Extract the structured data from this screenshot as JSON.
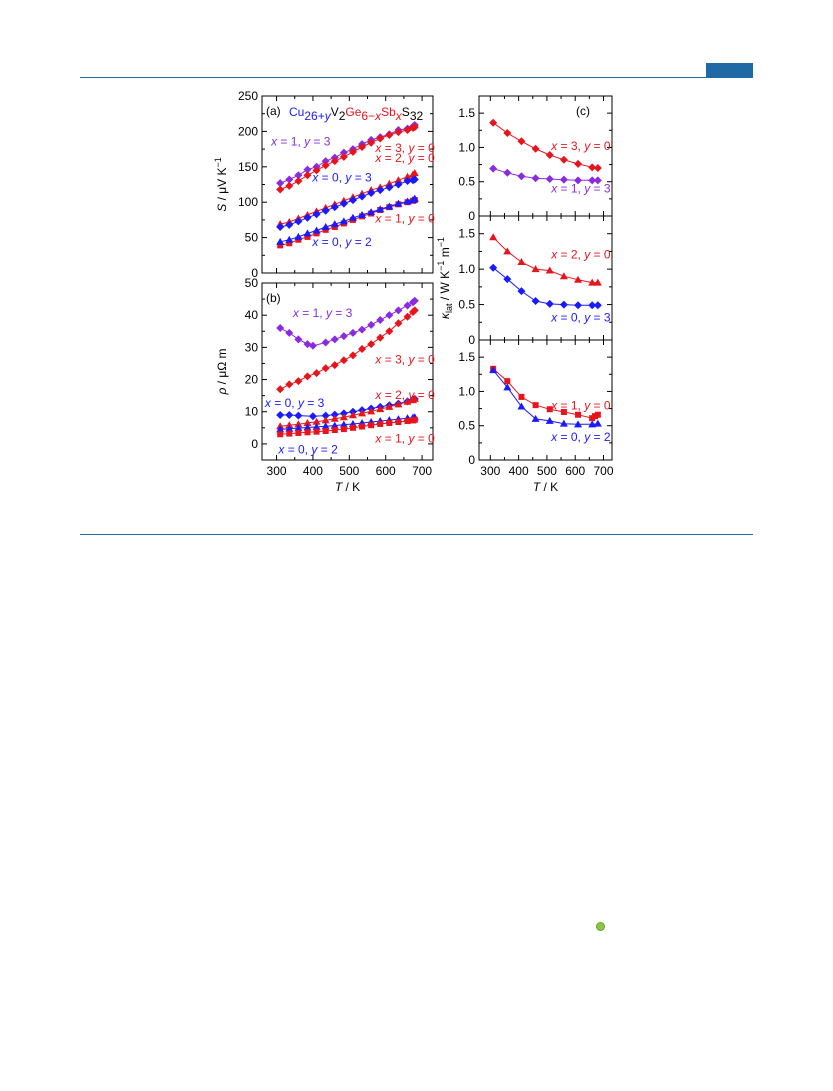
{
  "figure": {
    "panel_a_label": "(a)",
    "panel_b_label": "(b)",
    "panel_c_label": "(c)",
    "formula": [
      {
        "text": "Cu",
        "color": "#1a1aff",
        "sub": false
      },
      {
        "text": "26+",
        "color": "#1a1aff",
        "sub": true
      },
      {
        "text": "y",
        "color": "#1a1aff",
        "sub": true,
        "italic": true
      },
      {
        "text": "V",
        "color": "#000000",
        "sub": false
      },
      {
        "text": "2",
        "color": "#000000",
        "sub": true
      },
      {
        "text": "Ge",
        "color": "#e8141c",
        "sub": false
      },
      {
        "text": "6−",
        "color": "#e8141c",
        "sub": true
      },
      {
        "text": "x",
        "color": "#e8141c",
        "sub": true,
        "italic": true
      },
      {
        "text": "Sb",
        "color": "#e8141c",
        "sub": false
      },
      {
        "text": "x",
        "color": "#e8141c",
        "sub": true,
        "italic": true
      },
      {
        "text": "S",
        "color": "#000000",
        "sub": false
      },
      {
        "text": "32",
        "color": "#000000",
        "sub": true
      }
    ]
  },
  "chart_data": [
    {
      "id": "a",
      "type": "line",
      "ylabel": "S / μV K⁻¹",
      "xlabel": "",
      "xlim": [
        260,
        730
      ],
      "ylim": [
        0,
        250
      ],
      "xticks": [
        300,
        400,
        500,
        600,
        700
      ],
      "yticks": [
        0,
        50,
        100,
        150,
        200,
        250
      ],
      "show_x_ticklabels": false,
      "series": [
        {
          "name": "x = 1, y = 3",
          "color": "#8a2be2",
          "marker": "diamond",
          "x": [
            310,
            335,
            360,
            385,
            410,
            435,
            460,
            485,
            510,
            535,
            560,
            585,
            610,
            635,
            660,
            675,
            680
          ],
          "y": [
            127,
            132,
            138,
            146,
            150,
            158,
            163,
            170,
            175,
            182,
            188,
            192,
            196,
            202,
            204,
            207,
            209
          ]
        },
        {
          "name": "x = 3, y = 0",
          "color": "#e8141c",
          "marker": "diamond",
          "x": [
            310,
            335,
            360,
            385,
            410,
            435,
            460,
            485,
            510,
            535,
            560,
            585,
            610,
            635,
            660,
            675,
            680
          ],
          "y": [
            118,
            123,
            130,
            138,
            145,
            152,
            158,
            164,
            171,
            178,
            184,
            190,
            195,
            199,
            202,
            205,
            206
          ]
        },
        {
          "name": "x = 2, y = 0",
          "color": "#e8141c",
          "marker": "triangle",
          "x": [
            310,
            335,
            360,
            385,
            410,
            435,
            460,
            485,
            510,
            535,
            560,
            585,
            610,
            635,
            660,
            675,
            680
          ],
          "y": [
            69,
            72,
            77,
            82,
            87,
            92,
            97,
            102,
            107,
            112,
            117,
            121,
            126,
            131,
            136,
            139,
            141
          ]
        },
        {
          "name": "x = 0, y = 3",
          "color": "#1a1aff",
          "marker": "diamond",
          "x": [
            310,
            335,
            360,
            385,
            410,
            435,
            460,
            485,
            510,
            535,
            560,
            585,
            610,
            635,
            660,
            675,
            680
          ],
          "y": [
            65,
            68,
            73,
            78,
            83,
            88,
            93,
            98,
            103,
            108,
            113,
            117,
            121,
            125,
            130,
            131,
            132
          ]
        },
        {
          "name": "x = 1, y = 0",
          "color": "#e8141c",
          "marker": "square",
          "x": [
            310,
            335,
            360,
            385,
            410,
            435,
            460,
            485,
            510,
            535,
            560,
            585,
            610,
            635,
            660,
            675,
            680
          ],
          "y": [
            39,
            42,
            47,
            51,
            56,
            61,
            65,
            70,
            75,
            80,
            84,
            89,
            93,
            97,
            100,
            102,
            103
          ]
        },
        {
          "name": "x = 0, y = 2",
          "color": "#1a1aff",
          "marker": "triangle",
          "x": [
            310,
            335,
            360,
            385,
            410,
            435,
            460,
            485,
            510,
            535,
            560,
            585,
            610,
            635,
            660,
            675,
            680
          ],
          "y": [
            44,
            47,
            51,
            56,
            60,
            65,
            69,
            73,
            78,
            82,
            86,
            90,
            94,
            98,
            101,
            103,
            105
          ]
        }
      ],
      "annotations": [
        {
          "text": "x = 1, y = 3",
          "color": "#8a2be2",
          "x": 285,
          "y": 180,
          "anchor": "start"
        },
        {
          "text": "x = 3, y = 0",
          "color": "#e8141c",
          "x": 735,
          "y": 171,
          "anchor": "end"
        },
        {
          "text": "x = 2, y = 0",
          "color": "#e8141c",
          "x": 735,
          "y": 157,
          "anchor": "end"
        },
        {
          "text": "x = 0, y = 3",
          "color": "#1a1aff",
          "x": 480,
          "y": 129,
          "anchor": "middle"
        },
        {
          "text": "x = 1, y = 0",
          "color": "#e8141c",
          "x": 735,
          "y": 71,
          "anchor": "end"
        },
        {
          "text": "x = 0, y = 2",
          "color": "#1a1aff",
          "x": 480,
          "y": 38,
          "anchor": "middle"
        }
      ]
    },
    {
      "id": "b",
      "type": "line",
      "ylabel": "ρ / μΩ m",
      "xlabel": "T / K",
      "xlim": [
        260,
        730
      ],
      "ylim": [
        -5,
        50
      ],
      "xticks": [
        300,
        400,
        500,
        600,
        700
      ],
      "yticks": [
        0,
        10,
        20,
        30,
        40,
        50
      ],
      "show_x_ticklabels": true,
      "series": [
        {
          "name": "x = 1, y = 3",
          "color": "#8a2be2",
          "marker": "diamond",
          "x": [
            310,
            335,
            360,
            385,
            400,
            435,
            460,
            485,
            510,
            535,
            560,
            585,
            610,
            635,
            660,
            675,
            680
          ],
          "y": [
            36,
            34.5,
            32.5,
            31,
            30.5,
            31.5,
            32.5,
            33.5,
            34.5,
            35.5,
            37,
            38.5,
            40,
            41.5,
            43,
            44,
            44.5
          ]
        },
        {
          "name": "x = 3, y = 0",
          "color": "#e8141c",
          "marker": "diamond",
          "x": [
            310,
            335,
            360,
            385,
            410,
            435,
            460,
            485,
            510,
            535,
            560,
            585,
            610,
            635,
            660,
            675,
            680
          ],
          "y": [
            17,
            18.5,
            19.5,
            21,
            22,
            23.5,
            24.5,
            26,
            27.5,
            29.5,
            31,
            33,
            35,
            37.5,
            39.5,
            41,
            41.5
          ]
        },
        {
          "name": "x = 0, y = 3",
          "color": "#1a1aff",
          "marker": "diamond",
          "x": [
            310,
            335,
            360,
            400,
            435,
            460,
            485,
            510,
            535,
            560,
            585,
            610,
            635,
            660,
            675,
            680
          ],
          "y": [
            9,
            9,
            8.8,
            8.6,
            8.8,
            9.1,
            9.5,
            10,
            10.5,
            11,
            11.5,
            12,
            12.5,
            13.2,
            13.8,
            14
          ]
        },
        {
          "name": "x = 2, y = 0",
          "color": "#e8141c",
          "marker": "triangle",
          "x": [
            310,
            335,
            360,
            385,
            410,
            435,
            460,
            485,
            510,
            535,
            560,
            585,
            610,
            635,
            660,
            675,
            680
          ],
          "y": [
            5.5,
            5.8,
            6.1,
            6.5,
            6.9,
            7.3,
            7.8,
            8.3,
            8.9,
            9.5,
            10.1,
            10.8,
            11.5,
            12.3,
            13.1,
            13.6,
            14
          ]
        },
        {
          "name": "x = 0, y = 2",
          "color": "#1a1aff",
          "marker": "triangle",
          "x": [
            310,
            335,
            360,
            385,
            410,
            435,
            460,
            485,
            510,
            535,
            560,
            585,
            610,
            635,
            660,
            675,
            680
          ],
          "y": [
            4.5,
            4.7,
            4.9,
            5.1,
            5.3,
            5.5,
            5.7,
            6,
            6.2,
            6.5,
            6.8,
            7.1,
            7.4,
            7.7,
            8,
            8.2,
            8.3
          ]
        },
        {
          "name": "x = 1, y = 0",
          "color": "#e8141c",
          "marker": "square",
          "x": [
            310,
            335,
            360,
            385,
            410,
            435,
            460,
            485,
            510,
            535,
            560,
            585,
            610,
            635,
            660,
            675,
            680
          ],
          "y": [
            3,
            3.2,
            3.4,
            3.6,
            3.8,
            4,
            4.3,
            4.6,
            5,
            5.4,
            5.8,
            6.2,
            6.5,
            6.8,
            7.1,
            7.3,
            7.5
          ]
        }
      ],
      "annotations": [
        {
          "text": "x = 1, y = 3",
          "color": "#8a2be2",
          "x": 345,
          "y": 39.5,
          "anchor": "start"
        },
        {
          "text": "x = 3, y = 0",
          "color": "#e8141c",
          "x": 735,
          "y": 25,
          "anchor": "end"
        },
        {
          "text": "x = 2, y = 0",
          "color": "#e8141c",
          "x": 735,
          "y": 14,
          "anchor": "end"
        },
        {
          "text": "x = 0, y = 3",
          "color": "#1a1aff",
          "x": 268,
          "y": 11.5,
          "anchor": "start"
        },
        {
          "text": "x = 0, y = 2",
          "color": "#1a1aff",
          "x": 305,
          "y": -3,
          "anchor": "start"
        },
        {
          "text": "x = 1, y = 0",
          "color": "#e8141c",
          "x": 735,
          "y": 0.5,
          "anchor": "end"
        }
      ]
    },
    {
      "id": "c1",
      "type": "line",
      "ylabel": "",
      "xlabel": "",
      "xlim": [
        260,
        730
      ],
      "ylim": [
        0,
        1.75
      ],
      "xticks": [
        300,
        400,
        500,
        600,
        700
      ],
      "yticks": [
        0,
        0.5,
        1.0,
        1.5
      ],
      "show_x_ticklabels": false,
      "series": [
        {
          "name": "x = 3, y = 0",
          "color": "#e8141c",
          "marker": "diamond",
          "x": [
            310,
            360,
            410,
            460,
            510,
            560,
            610,
            660,
            680
          ],
          "y": [
            1.36,
            1.21,
            1.09,
            0.98,
            0.89,
            0.82,
            0.76,
            0.71,
            0.7
          ]
        },
        {
          "name": "x = 1, y = 3",
          "color": "#8a2be2",
          "marker": "diamond",
          "x": [
            310,
            360,
            410,
            460,
            510,
            560,
            610,
            660,
            680
          ],
          "y": [
            0.69,
            0.63,
            0.58,
            0.55,
            0.54,
            0.53,
            0.52,
            0.52,
            0.52
          ]
        }
      ],
      "annotations": [
        {
          "text": "x = 3, y = 0",
          "color": "#e8141c",
          "x": 725,
          "y": 0.96,
          "anchor": "end"
        },
        {
          "text": "x = 1, y = 3",
          "color": "#8a2be2",
          "x": 725,
          "y": 0.34,
          "anchor": "end"
        }
      ]
    },
    {
      "id": "c2",
      "type": "line",
      "ylabel": "κ_lat / W K⁻¹ m⁻¹",
      "xlabel": "",
      "xlim": [
        260,
        730
      ],
      "ylim": [
        0,
        1.75
      ],
      "xticks": [
        300,
        400,
        500,
        600,
        700
      ],
      "yticks": [
        0,
        0.5,
        1.0,
        1.5
      ],
      "show_x_ticklabels": false,
      "series": [
        {
          "name": "x = 2, y = 0",
          "color": "#e8141c",
          "marker": "triangle",
          "x": [
            310,
            360,
            410,
            460,
            510,
            560,
            610,
            660,
            680
          ],
          "y": [
            1.45,
            1.25,
            1.1,
            1.0,
            0.98,
            0.9,
            0.85,
            0.81,
            0.81
          ]
        },
        {
          "name": "x = 0, y = 3",
          "color": "#1a1aff",
          "marker": "diamond",
          "x": [
            310,
            360,
            410,
            460,
            510,
            560,
            610,
            660,
            680
          ],
          "y": [
            1.02,
            0.86,
            0.69,
            0.55,
            0.51,
            0.5,
            0.49,
            0.49,
            0.49
          ]
        }
      ],
      "annotations": [
        {
          "text": "x = 2, y = 0",
          "color": "#e8141c",
          "x": 725,
          "y": 1.15,
          "anchor": "end"
        },
        {
          "text": "x = 0, y = 3",
          "color": "#1a1aff",
          "x": 725,
          "y": 0.26,
          "anchor": "end"
        }
      ]
    },
    {
      "id": "c3",
      "type": "line",
      "ylabel": "",
      "xlabel": "T / K",
      "xlim": [
        260,
        730
      ],
      "ylim": [
        0,
        1.75
      ],
      "xticks": [
        300,
        400,
        500,
        600,
        700
      ],
      "yticks": [
        0,
        0.5,
        1.0,
        1.5
      ],
      "show_x_ticklabels": true,
      "series": [
        {
          "name": "x = 1, y = 0",
          "color": "#e8141c",
          "marker": "square",
          "x": [
            310,
            360,
            410,
            460,
            510,
            560,
            610,
            660,
            670,
            680
          ],
          "y": [
            1.33,
            1.15,
            0.92,
            0.8,
            0.74,
            0.7,
            0.66,
            0.61,
            0.64,
            0.66
          ]
        },
        {
          "name": "x = 0, y = 2",
          "color": "#1a1aff",
          "marker": "triangle",
          "x": [
            310,
            360,
            410,
            460,
            510,
            560,
            610,
            660,
            680
          ],
          "y": [
            1.31,
            1.06,
            0.78,
            0.6,
            0.57,
            0.53,
            0.52,
            0.52,
            0.53
          ]
        }
      ],
      "annotations": [
        {
          "text": "x = 1, y = 0",
          "color": "#e8141c",
          "x": 725,
          "y": 0.74,
          "anchor": "end"
        },
        {
          "text": "x = 0, y = 2",
          "color": "#1a1aff",
          "x": 725,
          "y": 0.28,
          "anchor": "end"
        }
      ]
    }
  ]
}
